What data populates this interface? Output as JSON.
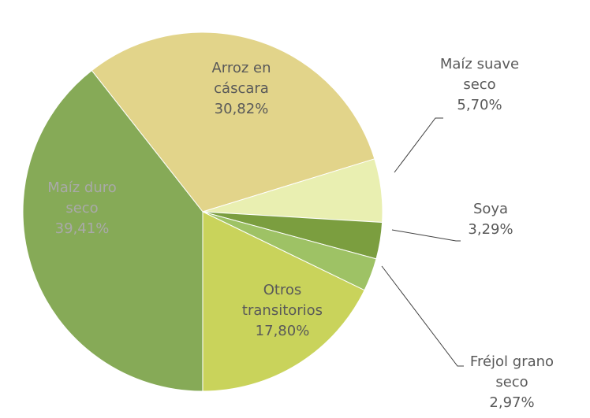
{
  "chart_data": {
    "type": "pie",
    "categories": [
      "Arroz en cáscara",
      "Maíz suave seco",
      "Soya",
      "Fréjol grano seco",
      "Otros transitorios",
      "Maíz duro seco"
    ],
    "values": [
      30.82,
      5.7,
      3.29,
      2.97,
      17.8,
      39.41
    ],
    "value_labels": [
      "30,82%",
      "5,70%",
      "3,29%",
      "2,97%",
      "17,80%",
      "39,41%"
    ],
    "colors": [
      "#e2d48a",
      "#e9efb1",
      "#7b9e3f",
      "#9ec265",
      "#c9d35b",
      "#86aa57"
    ]
  }
}
